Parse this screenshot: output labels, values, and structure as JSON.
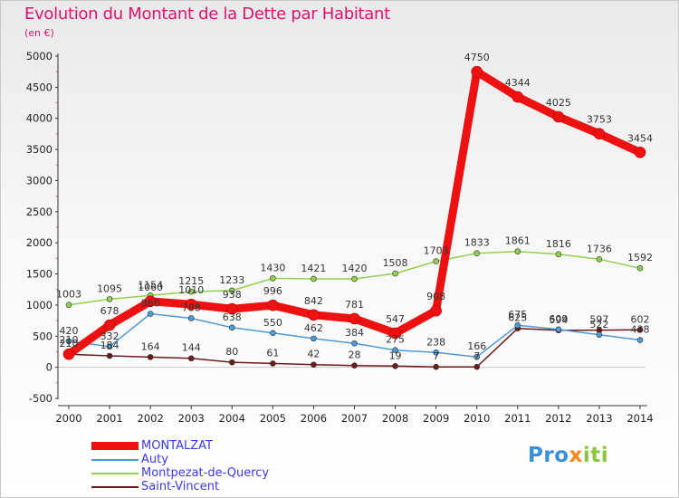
{
  "title": "Evolution du Montant de la Dette par Habitant",
  "unit": "(en €)",
  "brand": {
    "part1": "Pro",
    "part2": "x",
    "part3": "iti"
  },
  "chart_data": {
    "type": "line",
    "x": [
      "2000",
      "2001",
      "2002",
      "2003",
      "2004",
      "2005",
      "2006",
      "2007",
      "2008",
      "2009",
      "2010",
      "2011",
      "2012",
      "2013",
      "2014"
    ],
    "ylim": [
      -500,
      5000
    ],
    "yticks": [
      -500,
      0,
      500,
      1000,
      1500,
      2000,
      2500,
      3000,
      3500,
      4000,
      4500,
      5000
    ],
    "grid": false,
    "legend_placement": "bottom-left",
    "series": [
      {
        "name": "Saint-Vincent",
        "color": "#6b1a1a",
        "width": 1.5,
        "values": [
          210,
          184,
          164,
          144,
          80,
          61,
          42,
          28,
          19,
          7,
          7,
          625,
          594,
          597,
          602
        ],
        "labels": [
          "210",
          "184",
          "164",
          "144",
          "80",
          "61",
          "42",
          "28",
          "19",
          "7",
          "7",
          "625",
          "594",
          "597",
          "602"
        ]
      },
      {
        "name": "Auty",
        "color": "#4d9ad6",
        "width": 1.5,
        "values": [
          420,
          332,
          860,
          788,
          638,
          550,
          462,
          384,
          275,
          238,
          166,
          675,
          609,
          522,
          438
        ],
        "labels": [
          "420",
          "332",
          "860",
          "788",
          "638",
          "550",
          "462",
          "384",
          "275",
          "238",
          "166",
          "675",
          "609",
          "522",
          "438"
        ]
      },
      {
        "name": "Montpezat-de-Quercy",
        "color": "#92d050",
        "width": 1.5,
        "values": [
          1003,
          1095,
          1154,
          1215,
          1233,
          1430,
          1421,
          1420,
          1508,
          1703,
          1833,
          1861,
          1816,
          1736,
          1592
        ],
        "labels": [
          "1003",
          "1095",
          "1154",
          "1215",
          "1233",
          "1430",
          "1421",
          "1420",
          "1508",
          "1703",
          "1833",
          "1861",
          "1816",
          "1736",
          "1592"
        ]
      },
      {
        "name": "MONTALZAT",
        "color": "#ee1111",
        "width": 9,
        "values": [
          210,
          678,
          1060,
          1010,
          938,
          996,
          842,
          781,
          547,
          908,
          4750,
          4344,
          4025,
          3753,
          3454
        ],
        "labels": [
          "210",
          "678",
          "1060",
          "1010",
          "938",
          "996",
          "842",
          "781",
          "547",
          "908",
          "4750",
          "4344",
          "4025",
          "3753",
          "3454"
        ]
      }
    ],
    "legend_order": [
      "MONTALZAT",
      "Auty",
      "Montpezat-de-Quercy",
      "Saint-Vincent"
    ]
  }
}
